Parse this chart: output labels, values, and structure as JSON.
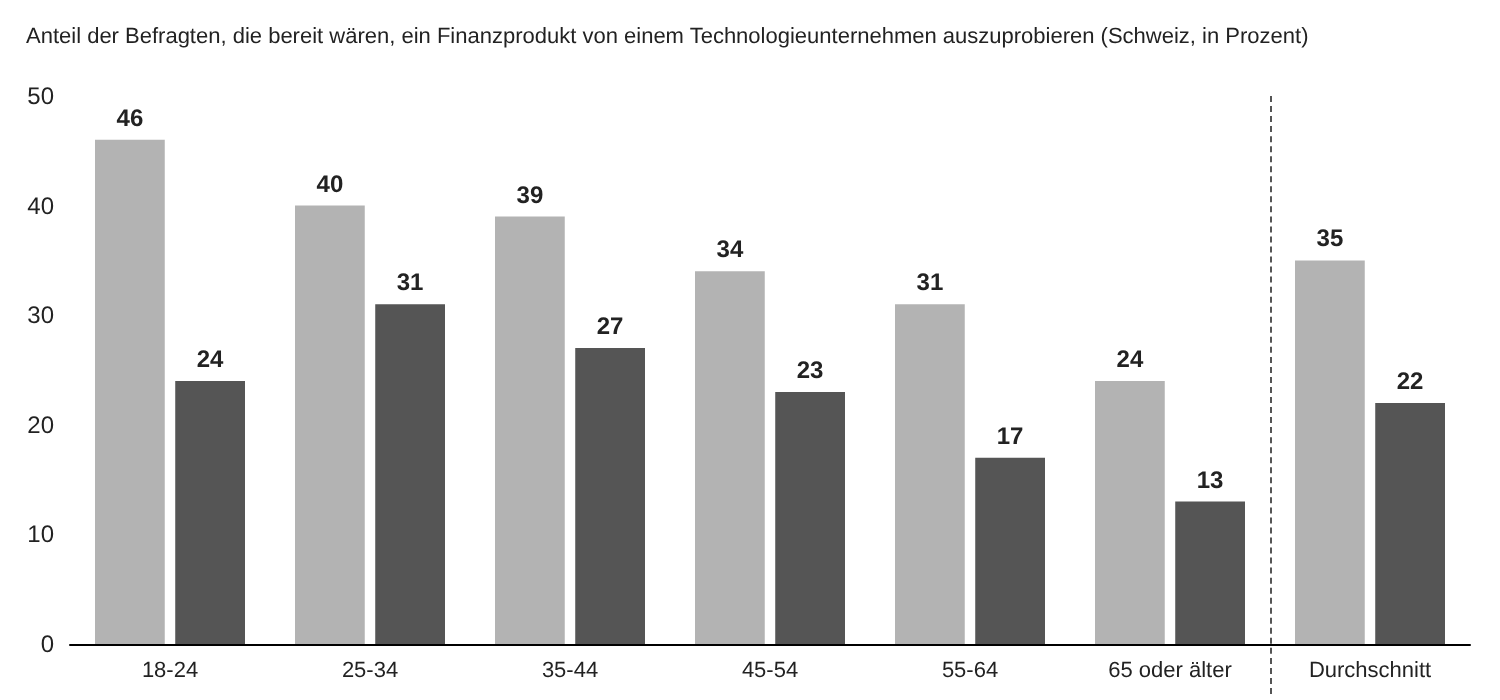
{
  "chart_data": {
    "type": "bar",
    "title": "Anteil der Befragten, die bereit wären, ein Finanzprodukt von einem Technologieunternehmen auszuprobieren (Schweiz, in Prozent)",
    "categories": [
      "18-24",
      "25-34",
      "35-44",
      "45-54",
      "55-64",
      "65 oder älter",
      "Durchschnitt"
    ],
    "series": [
      {
        "color": "#b3b3b3",
        "values": [
          46,
          40,
          39,
          34,
          31,
          24,
          35
        ]
      },
      {
        "color": "#555555",
        "values": [
          24,
          31,
          27,
          23,
          17,
          13,
          22
        ]
      }
    ],
    "ylim": [
      0,
      50
    ],
    "yticks": [
      0,
      10,
      20,
      30,
      40,
      50
    ],
    "grid": false,
    "data_labels": true
  }
}
